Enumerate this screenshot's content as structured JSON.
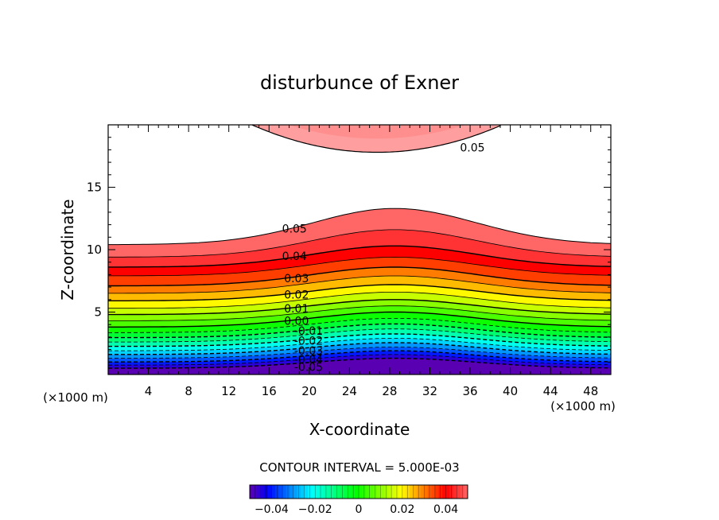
{
  "chart_data": {
    "type": "contour",
    "title": "disturbunce of Exner",
    "xlabel": "X-coordinate",
    "ylabel": "Z-coordinate",
    "x_unit": "(×1000 m)",
    "x_unit_right": "(×1000 m)",
    "xlim": [
      0,
      50
    ],
    "ylim": [
      0,
      20
    ],
    "x_ticks": [
      4,
      8,
      12,
      16,
      20,
      24,
      28,
      32,
      36,
      40,
      44,
      48
    ],
    "y_ticks": [
      5,
      10,
      15
    ],
    "contour_interval_label": "CONTOUR INTERVAL = 5.000E-03",
    "contour_interval": 0.005,
    "colorbar": {
      "range": [
        -0.05,
        0.05
      ],
      "ticks": [
        -0.04,
        -0.02,
        0,
        0.02,
        0.04
      ],
      "tick_labels": [
        "−0.04",
        "−0.02",
        "0",
        "0.02",
        "0.04"
      ]
    },
    "contour_labels": [
      {
        "text": "0.05",
        "x": 35,
        "y": 18.2
      },
      {
        "text": "0.05",
        "x": 17.3,
        "y": 11.7
      },
      {
        "text": "0.04",
        "x": 17.3,
        "y": 9.5
      },
      {
        "text": "0.03",
        "x": 17.5,
        "y": 7.7
      },
      {
        "text": "0.02",
        "x": 17.5,
        "y": 6.4
      },
      {
        "text": "0.01",
        "x": 17.5,
        "y": 5.3
      },
      {
        "text": "0.00",
        "x": 17.5,
        "y": 4.3
      },
      {
        "text": "-0.01",
        "x": 18.5,
        "y": 3.5
      },
      {
        "text": "-0.02",
        "x": 18.5,
        "y": 2.7
      },
      {
        "text": "-0.03",
        "x": 18.5,
        "y": 1.9
      },
      {
        "text": "-0.04",
        "x": 18.5,
        "y": 1.2
      },
      {
        "text": "-0.05",
        "x": 18.5,
        "y": 0.6
      }
    ],
    "field_levels": [
      {
        "value": -0.05,
        "z_edge": 0.5,
        "z_peak": 1.3
      },
      {
        "value": -0.045,
        "z_edge": 0.75,
        "z_peak": 1.6
      },
      {
        "value": -0.04,
        "z_edge": 1.0,
        "z_peak": 1.9
      },
      {
        "value": -0.035,
        "z_edge": 1.3,
        "z_peak": 2.2
      },
      {
        "value": -0.03,
        "z_edge": 1.6,
        "z_peak": 2.55
      },
      {
        "value": -0.025,
        "z_edge": 1.9,
        "z_peak": 2.9
      },
      {
        "value": -0.02,
        "z_edge": 2.25,
        "z_peak": 3.25
      },
      {
        "value": -0.015,
        "z_edge": 2.6,
        "z_peak": 3.65
      },
      {
        "value": -0.01,
        "z_edge": 2.95,
        "z_peak": 4.05
      },
      {
        "value": -0.005,
        "z_edge": 3.35,
        "z_peak": 4.5
      },
      {
        "value": 0.0,
        "z_edge": 3.8,
        "z_peak": 5.0
      },
      {
        "value": 0.005,
        "z_edge": 4.3,
        "z_peak": 5.5
      },
      {
        "value": 0.01,
        "z_edge": 4.8,
        "z_peak": 6.0
      },
      {
        "value": 0.015,
        "z_edge": 5.3,
        "z_peak": 6.6
      },
      {
        "value": 0.02,
        "z_edge": 5.9,
        "z_peak": 7.2
      },
      {
        "value": 0.025,
        "z_edge": 6.5,
        "z_peak": 7.9
      },
      {
        "value": 0.03,
        "z_edge": 7.1,
        "z_peak": 8.6
      },
      {
        "value": 0.035,
        "z_edge": 7.9,
        "z_peak": 9.4
      },
      {
        "value": 0.04,
        "z_edge": 8.6,
        "z_peak": 10.3
      },
      {
        "value": 0.045,
        "z_edge": 9.4,
        "z_peak": 11.6
      },
      {
        "value": 0.05,
        "z_edge": 10.4,
        "z_peak": 13.3
      }
    ],
    "upper_region": {
      "value": 0.05,
      "x_left": 14.3,
      "x_right": 39.2,
      "z_bottom": 17.8
    },
    "peak_x": 28.5
  }
}
